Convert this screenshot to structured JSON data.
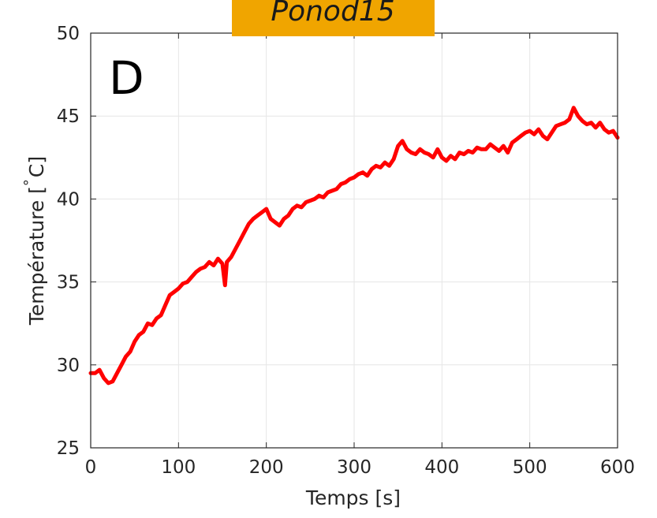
{
  "badge": {
    "text": "Ponod15",
    "color": "#f0a500"
  },
  "panel_letter": "D",
  "colors": {
    "line": "#ff0000",
    "grid": "#e6e6e6",
    "axis": "#262626"
  },
  "chart_data": {
    "type": "line",
    "xlabel": "Temps [s]",
    "ylabel_main": "Température [",
    "ylabel_degree": "°",
    "ylabel_unit": "C]",
    "xlim": [
      0,
      600
    ],
    "ylim": [
      25,
      50
    ],
    "xticks": [
      0,
      100,
      200,
      300,
      400,
      500,
      600
    ],
    "yticks": [
      25,
      30,
      35,
      40,
      45,
      50
    ],
    "grid": true,
    "series": [
      {
        "color": "#ff0000",
        "x": [
          0,
          5,
          10,
          15,
          20,
          25,
          30,
          35,
          40,
          45,
          50,
          55,
          60,
          65,
          70,
          75,
          80,
          85,
          90,
          95,
          100,
          105,
          110,
          115,
          120,
          125,
          130,
          135,
          140,
          145,
          150,
          153,
          155,
          160,
          165,
          170,
          175,
          180,
          185,
          190,
          195,
          200,
          205,
          210,
          215,
          220,
          225,
          230,
          235,
          240,
          245,
          250,
          255,
          260,
          265,
          270,
          275,
          280,
          285,
          290,
          295,
          300,
          305,
          310,
          315,
          320,
          325,
          330,
          335,
          340,
          345,
          350,
          355,
          360,
          365,
          370,
          375,
          380,
          385,
          390,
          395,
          400,
          405,
          410,
          415,
          420,
          425,
          430,
          435,
          440,
          445,
          450,
          455,
          460,
          465,
          470,
          475,
          480,
          485,
          490,
          495,
          500,
          505,
          510,
          515,
          520,
          525,
          530,
          535,
          540,
          545,
          550,
          555,
          560,
          565,
          570,
          575,
          580,
          585,
          590,
          595,
          600
        ],
        "values": [
          29.5,
          29.5,
          29.7,
          29.2,
          28.9,
          29.0,
          29.5,
          30.0,
          30.5,
          30.8,
          31.4,
          31.8,
          32.0,
          32.5,
          32.4,
          32.8,
          33.0,
          33.6,
          34.2,
          34.4,
          34.6,
          34.9,
          35.0,
          35.3,
          35.6,
          35.8,
          35.9,
          36.2,
          36.0,
          36.4,
          36.1,
          34.8,
          36.2,
          36.5,
          37.0,
          37.5,
          38.0,
          38.5,
          38.8,
          39.0,
          39.2,
          39.4,
          38.8,
          38.6,
          38.4,
          38.8,
          39.0,
          39.4,
          39.6,
          39.5,
          39.8,
          39.9,
          40.0,
          40.2,
          40.1,
          40.4,
          40.5,
          40.6,
          40.9,
          41.0,
          41.2,
          41.3,
          41.5,
          41.6,
          41.4,
          41.8,
          42.0,
          41.9,
          42.2,
          42.0,
          42.4,
          43.2,
          43.5,
          43.0,
          42.8,
          42.7,
          43.0,
          42.8,
          42.7,
          42.5,
          43.0,
          42.5,
          42.3,
          42.6,
          42.4,
          42.8,
          42.7,
          42.9,
          42.8,
          43.1,
          43.0,
          43.0,
          43.3,
          43.1,
          42.9,
          43.2,
          42.8,
          43.4,
          43.6,
          43.8,
          44.0,
          44.1,
          43.9,
          44.2,
          43.8,
          43.6,
          44.0,
          44.4,
          44.5,
          44.6,
          44.8,
          45.5,
          45.0,
          44.7,
          44.5,
          44.6,
          44.3,
          44.6,
          44.2,
          44.0,
          44.1,
          43.7
        ]
      }
    ]
  }
}
